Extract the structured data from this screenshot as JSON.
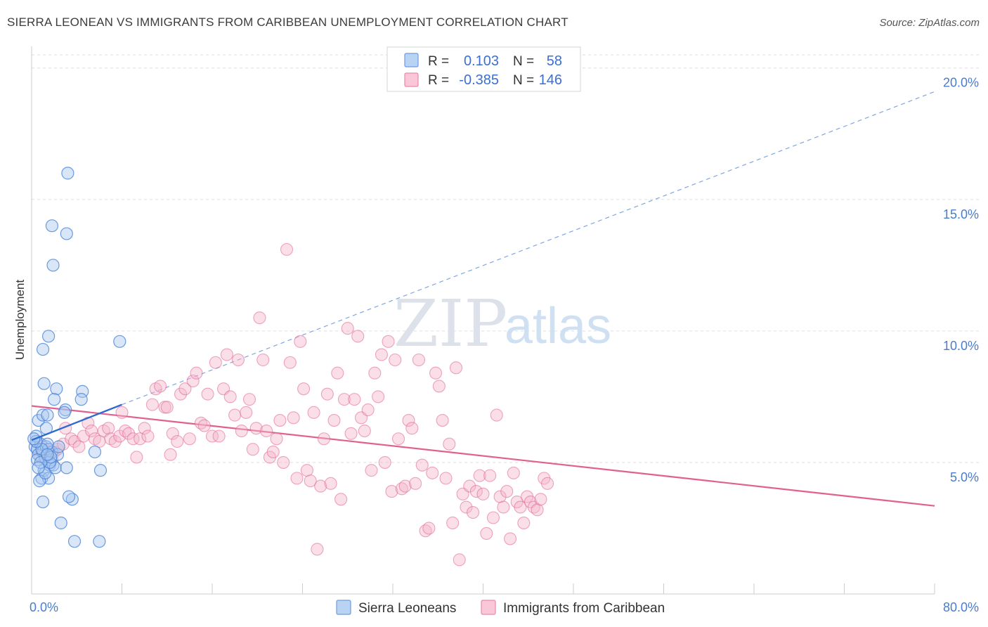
{
  "header": {
    "title": "SIERRA LEONEAN VS IMMIGRANTS FROM CARIBBEAN UNEMPLOYMENT CORRELATION CHART",
    "source": "Source: ZipAtlas.com"
  },
  "watermark": {
    "zip": "ZIP",
    "atlas": "atlas"
  },
  "colors": {
    "blue": "#4a84d8",
    "blue_fill": "#a9c8f0",
    "pink": "#e0608f",
    "pink_fill": "#f4b6cb",
    "grid": "#dddddd",
    "axis_label": "#4a7ccc"
  },
  "legend_top": {
    "rows": [
      {
        "r_label": "R =",
        "r_value": "0.103",
        "n_label": "N =",
        "n_value": "58"
      },
      {
        "r_label": "R =",
        "r_value": "-0.385",
        "n_label": "N =",
        "n_value": "146"
      }
    ]
  },
  "legend_bottom": {
    "series": [
      "Sierra Leoneans",
      "Immigrants from Caribbean"
    ]
  },
  "chart_data": {
    "type": "scatter",
    "title": "SIERRA LEONEAN VS IMMIGRANTS FROM CARIBBEAN UNEMPLOYMENT CORRELATION CHART",
    "xlabel": "",
    "ylabel": "Unemployment",
    "xlim": [
      0,
      80
    ],
    "ylim": [
      0,
      20.5
    ],
    "x_tick_labels": [
      "0.0%",
      "80.0%"
    ],
    "y_ticks": [
      5,
      10,
      15,
      20
    ],
    "y_tick_labels": [
      "5.0%",
      "10.0%",
      "15.0%",
      "20.0%"
    ],
    "grid": true,
    "legend": "top-center",
    "series": [
      {
        "name": "Sierra Leoneans",
        "r": 0.103,
        "n": 58,
        "trend": {
          "x0": 0,
          "y0": 5.85,
          "x1": 8,
          "y1": 7.2,
          "extend_to_x": 80,
          "extend_y": 19.1
        },
        "points": [
          [
            0.3,
            5.6
          ],
          [
            0.5,
            5.5
          ],
          [
            0.6,
            5.3
          ],
          [
            0.8,
            5.7
          ],
          [
            1.0,
            5.4
          ],
          [
            1.2,
            5.2
          ],
          [
            1.3,
            5.6
          ],
          [
            1.5,
            5.5
          ],
          [
            1.7,
            5.1
          ],
          [
            1.8,
            5.4
          ],
          [
            0.4,
            6.0
          ],
          [
            0.6,
            6.6
          ],
          [
            1.0,
            6.8
          ],
          [
            1.4,
            6.8
          ],
          [
            0.9,
            4.4
          ],
          [
            1.1,
            4.7
          ],
          [
            1.5,
            4.4
          ],
          [
            1.6,
            4.9
          ],
          [
            0.7,
            4.3
          ],
          [
            1.2,
            4.6
          ],
          [
            1.4,
            5.7
          ],
          [
            1.9,
            4.9
          ],
          [
            2.1,
            4.8
          ],
          [
            2.3,
            5.3
          ],
          [
            1.6,
            5.0
          ],
          [
            0.9,
            5.5
          ],
          [
            0.5,
            5.1
          ],
          [
            2.2,
            7.8
          ],
          [
            1.1,
            8.0
          ],
          [
            2.0,
            7.4
          ],
          [
            3.0,
            7.0
          ],
          [
            2.9,
            6.9
          ],
          [
            4.5,
            7.7
          ],
          [
            4.4,
            7.4
          ],
          [
            1.0,
            9.3
          ],
          [
            1.5,
            9.8
          ],
          [
            1.8,
            14.0
          ],
          [
            3.1,
            13.7
          ],
          [
            1.9,
            12.5
          ],
          [
            3.2,
            16.0
          ],
          [
            7.8,
            9.6
          ],
          [
            3.1,
            4.8
          ],
          [
            5.6,
            5.4
          ],
          [
            6.1,
            4.7
          ],
          [
            3.6,
            3.6
          ],
          [
            3.3,
            3.7
          ],
          [
            1.0,
            3.5
          ],
          [
            2.6,
            2.7
          ],
          [
            3.8,
            2.0
          ],
          [
            6.0,
            2.0
          ],
          [
            0.4,
            5.8
          ],
          [
            0.2,
            5.9
          ],
          [
            1.3,
            6.3
          ],
          [
            0.8,
            5.0
          ],
          [
            1.7,
            5.2
          ],
          [
            2.4,
            5.6
          ],
          [
            0.6,
            4.8
          ],
          [
            1.4,
            5.3
          ]
        ]
      },
      {
        "name": "Immigrants from Caribbean",
        "r": -0.385,
        "n": 146,
        "trend": {
          "x0": 0,
          "y0": 7.15,
          "x1": 80,
          "y1": 3.35
        },
        "points": [
          [
            0.5,
            5.5
          ],
          [
            0.8,
            5.2
          ],
          [
            1.0,
            5.6
          ],
          [
            1.2,
            5.3
          ],
          [
            1.5,
            5.5
          ],
          [
            1.8,
            5.1
          ],
          [
            2.0,
            5.4
          ],
          [
            2.3,
            5.5
          ],
          [
            2.8,
            5.7
          ],
          [
            3.0,
            6.3
          ],
          [
            3.5,
            5.9
          ],
          [
            3.8,
            5.8
          ],
          [
            4.2,
            5.6
          ],
          [
            4.6,
            6.0
          ],
          [
            5.0,
            6.5
          ],
          [
            5.3,
            6.2
          ],
          [
            5.6,
            5.9
          ],
          [
            6.0,
            5.8
          ],
          [
            6.4,
            6.2
          ],
          [
            6.8,
            6.3
          ],
          [
            7.0,
            5.9
          ],
          [
            7.4,
            5.8
          ],
          [
            7.8,
            6.0
          ],
          [
            8.0,
            6.9
          ],
          [
            8.3,
            6.2
          ],
          [
            8.6,
            6.1
          ],
          [
            9.0,
            5.9
          ],
          [
            9.3,
            5.2
          ],
          [
            9.6,
            5.9
          ],
          [
            10.0,
            6.3
          ],
          [
            10.3,
            6.0
          ],
          [
            10.7,
            7.2
          ],
          [
            11.0,
            7.8
          ],
          [
            11.4,
            7.9
          ],
          [
            11.8,
            7.1
          ],
          [
            12.0,
            7.1
          ],
          [
            12.3,
            5.3
          ],
          [
            12.5,
            6.1
          ],
          [
            12.9,
            5.8
          ],
          [
            13.2,
            7.6
          ],
          [
            13.6,
            7.8
          ],
          [
            14.0,
            5.9
          ],
          [
            14.3,
            8.1
          ],
          [
            14.6,
            8.4
          ],
          [
            15.0,
            6.5
          ],
          [
            15.3,
            6.4
          ],
          [
            15.6,
            7.6
          ],
          [
            16.0,
            6.0
          ],
          [
            16.3,
            8.8
          ],
          [
            16.6,
            6.0
          ],
          [
            17.0,
            7.8
          ],
          [
            17.3,
            9.1
          ],
          [
            17.6,
            7.5
          ],
          [
            18.0,
            6.8
          ],
          [
            18.3,
            8.9
          ],
          [
            18.6,
            6.2
          ],
          [
            19.0,
            6.9
          ],
          [
            19.3,
            7.4
          ],
          [
            19.6,
            5.5
          ],
          [
            19.9,
            6.3
          ],
          [
            20.2,
            10.5
          ],
          [
            20.5,
            8.9
          ],
          [
            20.8,
            6.2
          ],
          [
            21.1,
            5.2
          ],
          [
            21.4,
            5.4
          ],
          [
            21.7,
            5.9
          ],
          [
            22.0,
            6.6
          ],
          [
            22.3,
            5.0
          ],
          [
            22.6,
            13.1
          ],
          [
            22.9,
            8.8
          ],
          [
            23.2,
            6.7
          ],
          [
            23.5,
            4.4
          ],
          [
            23.8,
            9.6
          ],
          [
            24.1,
            7.8
          ],
          [
            24.4,
            4.7
          ],
          [
            24.7,
            4.3
          ],
          [
            25.0,
            6.9
          ],
          [
            25.3,
            1.7
          ],
          [
            25.6,
            4.1
          ],
          [
            25.9,
            5.9
          ],
          [
            26.2,
            7.6
          ],
          [
            26.5,
            4.2
          ],
          [
            26.8,
            6.6
          ],
          [
            27.1,
            8.4
          ],
          [
            27.4,
            3.6
          ],
          [
            27.7,
            7.4
          ],
          [
            28.0,
            10.1
          ],
          [
            28.3,
            6.1
          ],
          [
            28.6,
            7.4
          ],
          [
            28.9,
            9.8
          ],
          [
            29.2,
            6.7
          ],
          [
            29.5,
            6.2
          ],
          [
            29.8,
            7.0
          ],
          [
            30.1,
            4.7
          ],
          [
            30.4,
            8.4
          ],
          [
            30.7,
            7.5
          ],
          [
            31.0,
            9.1
          ],
          [
            31.3,
            5.0
          ],
          [
            31.6,
            9.6
          ],
          [
            31.9,
            3.9
          ],
          [
            32.2,
            8.9
          ],
          [
            32.5,
            5.9
          ],
          [
            32.8,
            4.0
          ],
          [
            33.1,
            4.1
          ],
          [
            33.4,
            6.6
          ],
          [
            33.7,
            6.3
          ],
          [
            34.0,
            4.2
          ],
          [
            34.3,
            8.9
          ],
          [
            34.6,
            4.9
          ],
          [
            34.9,
            2.4
          ],
          [
            35.2,
            2.5
          ],
          [
            35.5,
            4.6
          ],
          [
            35.8,
            8.4
          ],
          [
            36.1,
            7.9
          ],
          [
            36.4,
            6.6
          ],
          [
            36.7,
            4.4
          ],
          [
            37.0,
            5.7
          ],
          [
            37.3,
            2.7
          ],
          [
            37.6,
            8.6
          ],
          [
            37.9,
            1.3
          ],
          [
            38.2,
            3.8
          ],
          [
            38.5,
            3.3
          ],
          [
            38.8,
            4.1
          ],
          [
            39.1,
            3.1
          ],
          [
            39.4,
            3.9
          ],
          [
            39.7,
            4.5
          ],
          [
            40.0,
            3.8
          ],
          [
            40.3,
            2.3
          ],
          [
            40.6,
            4.5
          ],
          [
            40.9,
            2.9
          ],
          [
            41.2,
            6.8
          ],
          [
            41.5,
            3.7
          ],
          [
            41.8,
            3.3
          ],
          [
            42.1,
            3.9
          ],
          [
            42.4,
            2.1
          ],
          [
            42.7,
            4.6
          ],
          [
            43.0,
            3.5
          ],
          [
            43.3,
            3.3
          ],
          [
            43.6,
            2.7
          ],
          [
            43.9,
            3.7
          ],
          [
            44.2,
            3.5
          ],
          [
            44.5,
            3.3
          ],
          [
            44.8,
            3.2
          ],
          [
            45.1,
            3.6
          ],
          [
            45.4,
            4.4
          ],
          [
            45.7,
            4.2
          ]
        ]
      }
    ]
  }
}
